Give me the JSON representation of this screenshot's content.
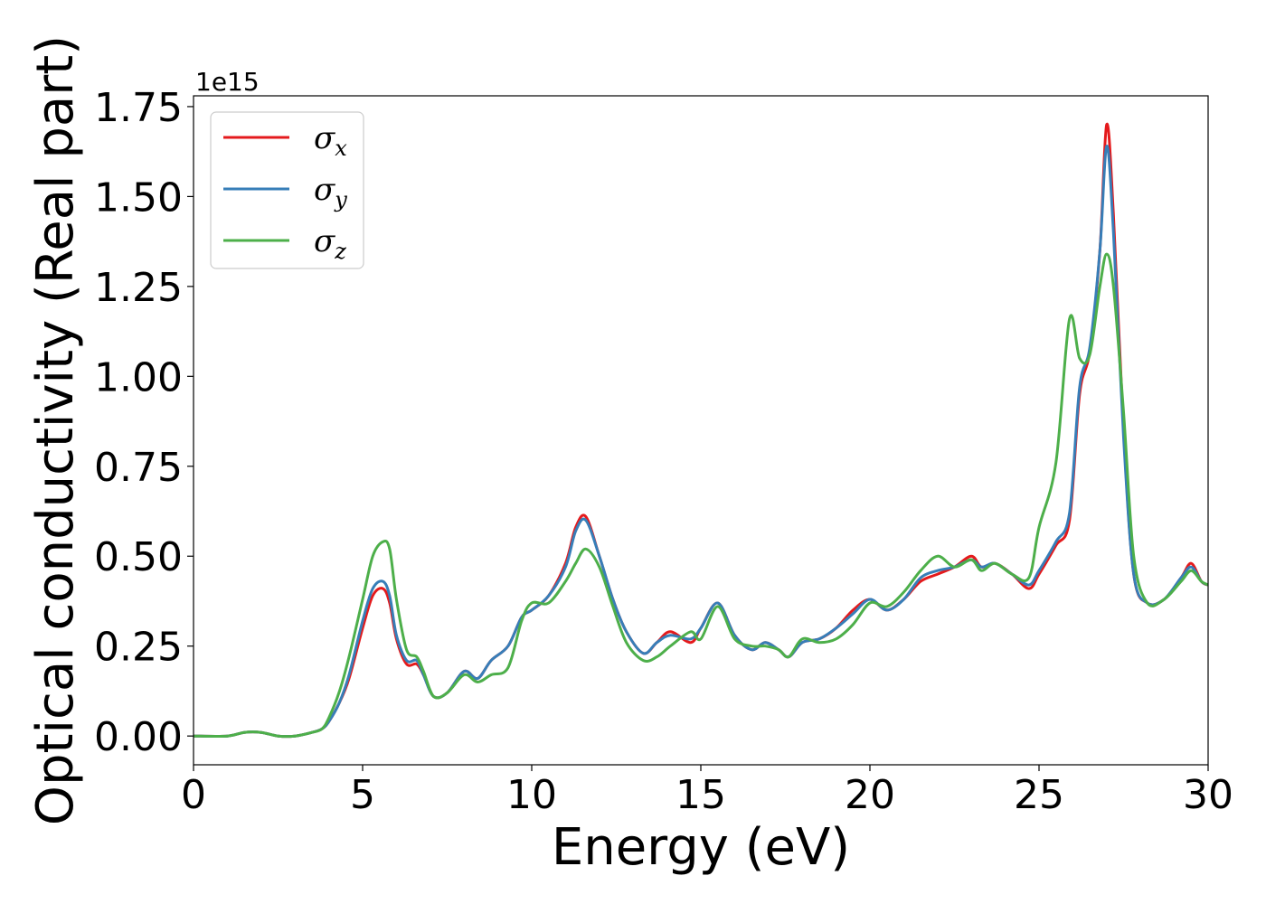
{
  "chart_data": {
    "type": "line",
    "title": "",
    "xlabel": "Energy (eV)",
    "ylabel": "Optical conductivity (Real part)",
    "y_offset_label": "1e15",
    "xlim": [
      0,
      30
    ],
    "ylim": [
      -0.08,
      1.78
    ],
    "x_ticks": [
      0,
      5,
      10,
      15,
      20,
      25,
      30
    ],
    "x_tick_labels": [
      "0",
      "5",
      "10",
      "15",
      "20",
      "25",
      "30"
    ],
    "y_ticks": [
      0,
      0.25,
      0.5,
      0.75,
      1.0,
      1.25,
      1.5,
      1.75
    ],
    "y_tick_labels": [
      "0.00",
      "0.25",
      "0.50",
      "0.75",
      "1.00",
      "1.25",
      "1.50",
      "1.75"
    ],
    "grid": false,
    "legend_position": "top-left",
    "x": [
      0,
      1,
      1.5,
      2,
      2.5,
      3,
      3.5,
      3.8,
      4,
      4.3,
      4.6,
      5,
      5.3,
      5.6,
      5.8,
      6,
      6.3,
      6.6,
      6.8,
      7.1,
      7.5,
      8,
      8.4,
      8.8,
      9.3,
      9.7,
      10,
      10.5,
      11,
      11.3,
      11.6,
      12,
      12.4,
      12.8,
      13.3,
      13.7,
      14.1,
      14.7,
      15,
      15.5,
      16,
      16.5,
      16.9,
      17.3,
      17.6,
      18,
      18.5,
      19,
      19.5,
      20,
      20.5,
      21,
      21.5,
      22,
      22.5,
      23,
      23.3,
      23.7,
      24.2,
      24.7,
      25,
      25.5,
      25.9,
      26.2,
      26.5,
      26.8,
      27,
      27.2,
      27.5,
      27.8,
      28.2,
      28.7,
      29.2,
      29.5,
      29.8,
      30
    ],
    "series": [
      {
        "name": "σx",
        "color": "#e41a1c",
        "values": [
          0,
          0,
          0.01,
          0.01,
          0,
          0,
          0.01,
          0.02,
          0.04,
          0.09,
          0.16,
          0.3,
          0.39,
          0.41,
          0.37,
          0.27,
          0.2,
          0.2,
          0.17,
          0.11,
          0.12,
          0.18,
          0.16,
          0.21,
          0.25,
          0.33,
          0.35,
          0.39,
          0.48,
          0.58,
          0.61,
          0.5,
          0.38,
          0.29,
          0.23,
          0.26,
          0.29,
          0.26,
          0.3,
          0.37,
          0.28,
          0.24,
          0.26,
          0.24,
          0.22,
          0.26,
          0.27,
          0.3,
          0.35,
          0.38,
          0.35,
          0.38,
          0.43,
          0.45,
          0.47,
          0.5,
          0.47,
          0.48,
          0.45,
          0.41,
          0.45,
          0.53,
          0.6,
          0.95,
          1.07,
          1.35,
          1.7,
          1.45,
          0.85,
          0.45,
          0.37,
          0.38,
          0.44,
          0.48,
          0.43,
          0.42
        ]
      },
      {
        "name": "σy",
        "color": "#377eb8",
        "values": [
          0,
          0,
          0.01,
          0.01,
          0,
          0,
          0.01,
          0.02,
          0.04,
          0.09,
          0.17,
          0.32,
          0.41,
          0.43,
          0.39,
          0.28,
          0.21,
          0.21,
          0.17,
          0.11,
          0.12,
          0.18,
          0.16,
          0.21,
          0.25,
          0.33,
          0.35,
          0.39,
          0.47,
          0.57,
          0.6,
          0.5,
          0.38,
          0.29,
          0.23,
          0.26,
          0.28,
          0.27,
          0.3,
          0.37,
          0.28,
          0.24,
          0.26,
          0.24,
          0.22,
          0.26,
          0.27,
          0.3,
          0.34,
          0.38,
          0.35,
          0.38,
          0.44,
          0.46,
          0.47,
          0.49,
          0.47,
          0.48,
          0.45,
          0.42,
          0.46,
          0.54,
          0.62,
          0.97,
          1.08,
          1.35,
          1.64,
          1.4,
          0.83,
          0.45,
          0.37,
          0.38,
          0.44,
          0.47,
          0.43,
          0.42
        ]
      },
      {
        "name": "σz",
        "color": "#4daf4a",
        "values": [
          0,
          0,
          0.01,
          0.01,
          0,
          0,
          0.01,
          0.02,
          0.05,
          0.12,
          0.22,
          0.38,
          0.5,
          0.54,
          0.52,
          0.38,
          0.24,
          0.22,
          0.18,
          0.11,
          0.12,
          0.17,
          0.15,
          0.17,
          0.19,
          0.32,
          0.37,
          0.37,
          0.43,
          0.48,
          0.52,
          0.47,
          0.36,
          0.26,
          0.21,
          0.22,
          0.25,
          0.29,
          0.27,
          0.36,
          0.27,
          0.25,
          0.25,
          0.24,
          0.22,
          0.27,
          0.26,
          0.27,
          0.31,
          0.37,
          0.36,
          0.4,
          0.46,
          0.5,
          0.47,
          0.49,
          0.46,
          0.48,
          0.45,
          0.44,
          0.58,
          0.76,
          1.16,
          1.05,
          1.06,
          1.25,
          1.34,
          1.25,
          0.9,
          0.5,
          0.37,
          0.38,
          0.43,
          0.46,
          0.43,
          0.42
        ]
      }
    ]
  }
}
